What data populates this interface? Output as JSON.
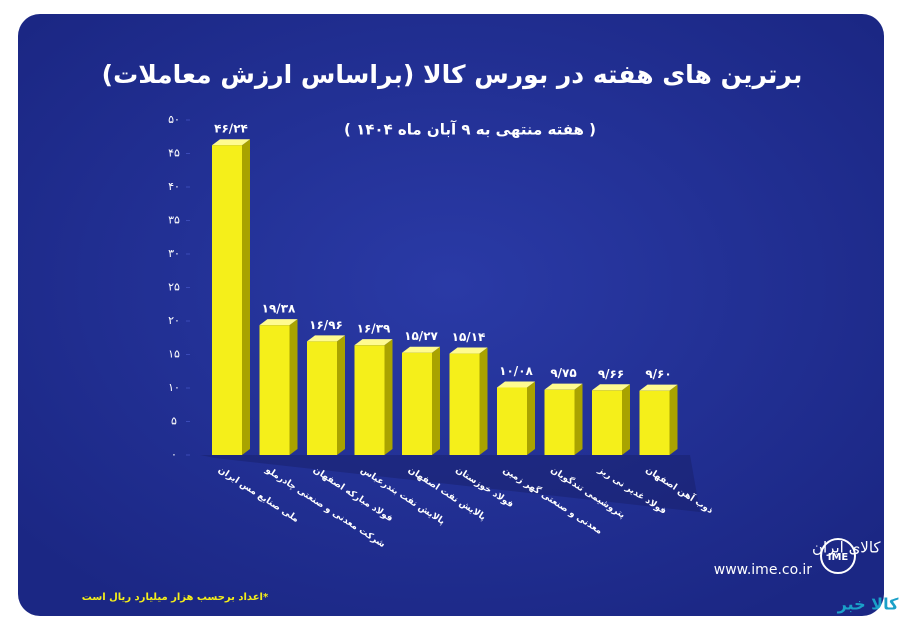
{
  "chart_data": {
    "type": "bar",
    "title": "برترین های هفته در بورس کالا (براساس ارزش معاملات)",
    "subtitle": "( هفته منتهی به ۹ آبان ماه ۱۴۰۴ )",
    "categories": [
      "ملی صنایع مس ایران",
      "شرکت معدنی و صنعتی چادرملو",
      "فولاد مبارکه اصفهان",
      "پالایش نفت بندرعباس",
      "پالایش نفت اصفهان",
      "فولاد خوزستان",
      "معدنی و صنعتی گهر زمین",
      "پتروشیمی تندگویان",
      "فولاد غدیر نی ریز",
      "ذوب آهن اصفهان"
    ],
    "values": [
      46.24,
      19.38,
      16.96,
      16.39,
      15.27,
      15.14,
      10.08,
      9.75,
      9.66,
      9.6
    ],
    "value_labels": [
      "۴۶/۲۴",
      "۱۹/۳۸",
      "۱۶/۹۶",
      "۱۶/۳۹",
      "۱۵/۲۷",
      "۱۵/۱۴",
      "۱۰/۰۸",
      "۹/۷۵",
      "۹/۶۶",
      "۹/۶۰"
    ],
    "color": "#f5ef1a",
    "ylim": [
      0,
      50
    ],
    "yticks": [
      {
        "value": 0,
        "label": "۰"
      },
      {
        "value": 5,
        "label": "۵"
      },
      {
        "value": 10,
        "label": "۱۰"
      },
      {
        "value": 15,
        "label": "۱۵"
      },
      {
        "value": 20,
        "label": "۲۰"
      },
      {
        "value": 25,
        "label": "۲۵"
      },
      {
        "value": 30,
        "label": "۳۰"
      },
      {
        "value": 35,
        "label": "۳۵"
      },
      {
        "value": 40,
        "label": "۴۰"
      },
      {
        "value": 45,
        "label": "۴۵"
      },
      {
        "value": 50,
        "label": "۵۰"
      }
    ],
    "grid": false,
    "note": "*اعداد برحسب هزار میلیارد ریال است"
  },
  "branding": {
    "name": "بورس کالای ایران",
    "url": "www.ime.co.ir",
    "logo": "IME",
    "watermark": "کالا خبر"
  }
}
